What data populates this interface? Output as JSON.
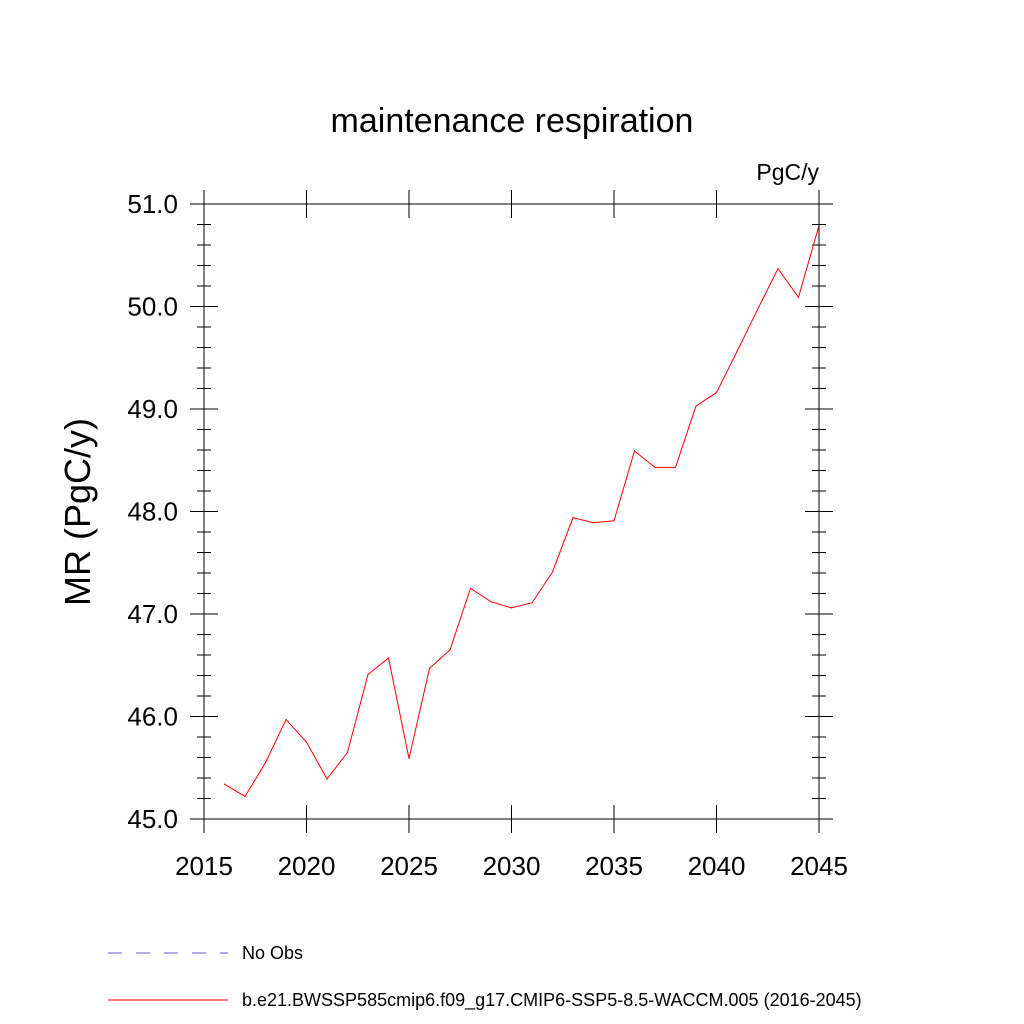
{
  "chart_data": {
    "type": "line",
    "title": "maintenance respiration",
    "units": "PgC/y",
    "xlabel": "",
    "ylabel": "MR  (PgC/y)",
    "xlim": [
      2015,
      2045
    ],
    "ylim": [
      45.0,
      51.0
    ],
    "xticks": [
      2015,
      2020,
      2025,
      2030,
      2035,
      2040,
      2045
    ],
    "xtick_labels": [
      "2015",
      "2020",
      "2025",
      "2030",
      "2035",
      "2040",
      "2045"
    ],
    "yticks": [
      45.0,
      46.0,
      47.0,
      48.0,
      49.0,
      50.0,
      51.0
    ],
    "ytick_labels": [
      "45.0",
      "46.0",
      "47.0",
      "48.0",
      "49.0",
      "50.0",
      "51.0"
    ],
    "grid": false,
    "legend_position": "bottom",
    "series": [
      {
        "name": "No Obs",
        "color": "#6a5acd",
        "style": "dashed",
        "x": [],
        "y": []
      },
      {
        "name": "b.e21.BWSSP585cmip6.f09_g17.CMIP6-SSP5-8.5-WACCM.005 (2016-2045)",
        "color": "#ff0000",
        "style": "solid",
        "x": [
          2016,
          2017,
          2018,
          2019,
          2020,
          2021,
          2022,
          2023,
          2024,
          2025,
          2026,
          2027,
          2028,
          2029,
          2030,
          2031,
          2032,
          2033,
          2034,
          2035,
          2036,
          2037,
          2038,
          2039,
          2040,
          2041,
          2042,
          2043,
          2044,
          2045
        ],
        "y": [
          45.34,
          45.22,
          45.55,
          45.97,
          45.75,
          45.39,
          45.65,
          46.41,
          46.57,
          45.59,
          46.47,
          46.65,
          47.25,
          47.12,
          47.06,
          47.11,
          47.41,
          47.94,
          47.89,
          47.91,
          48.59,
          48.43,
          48.43,
          49.03,
          49.16,
          49.56,
          49.97,
          50.37,
          50.09,
          50.79
        ]
      }
    ]
  }
}
